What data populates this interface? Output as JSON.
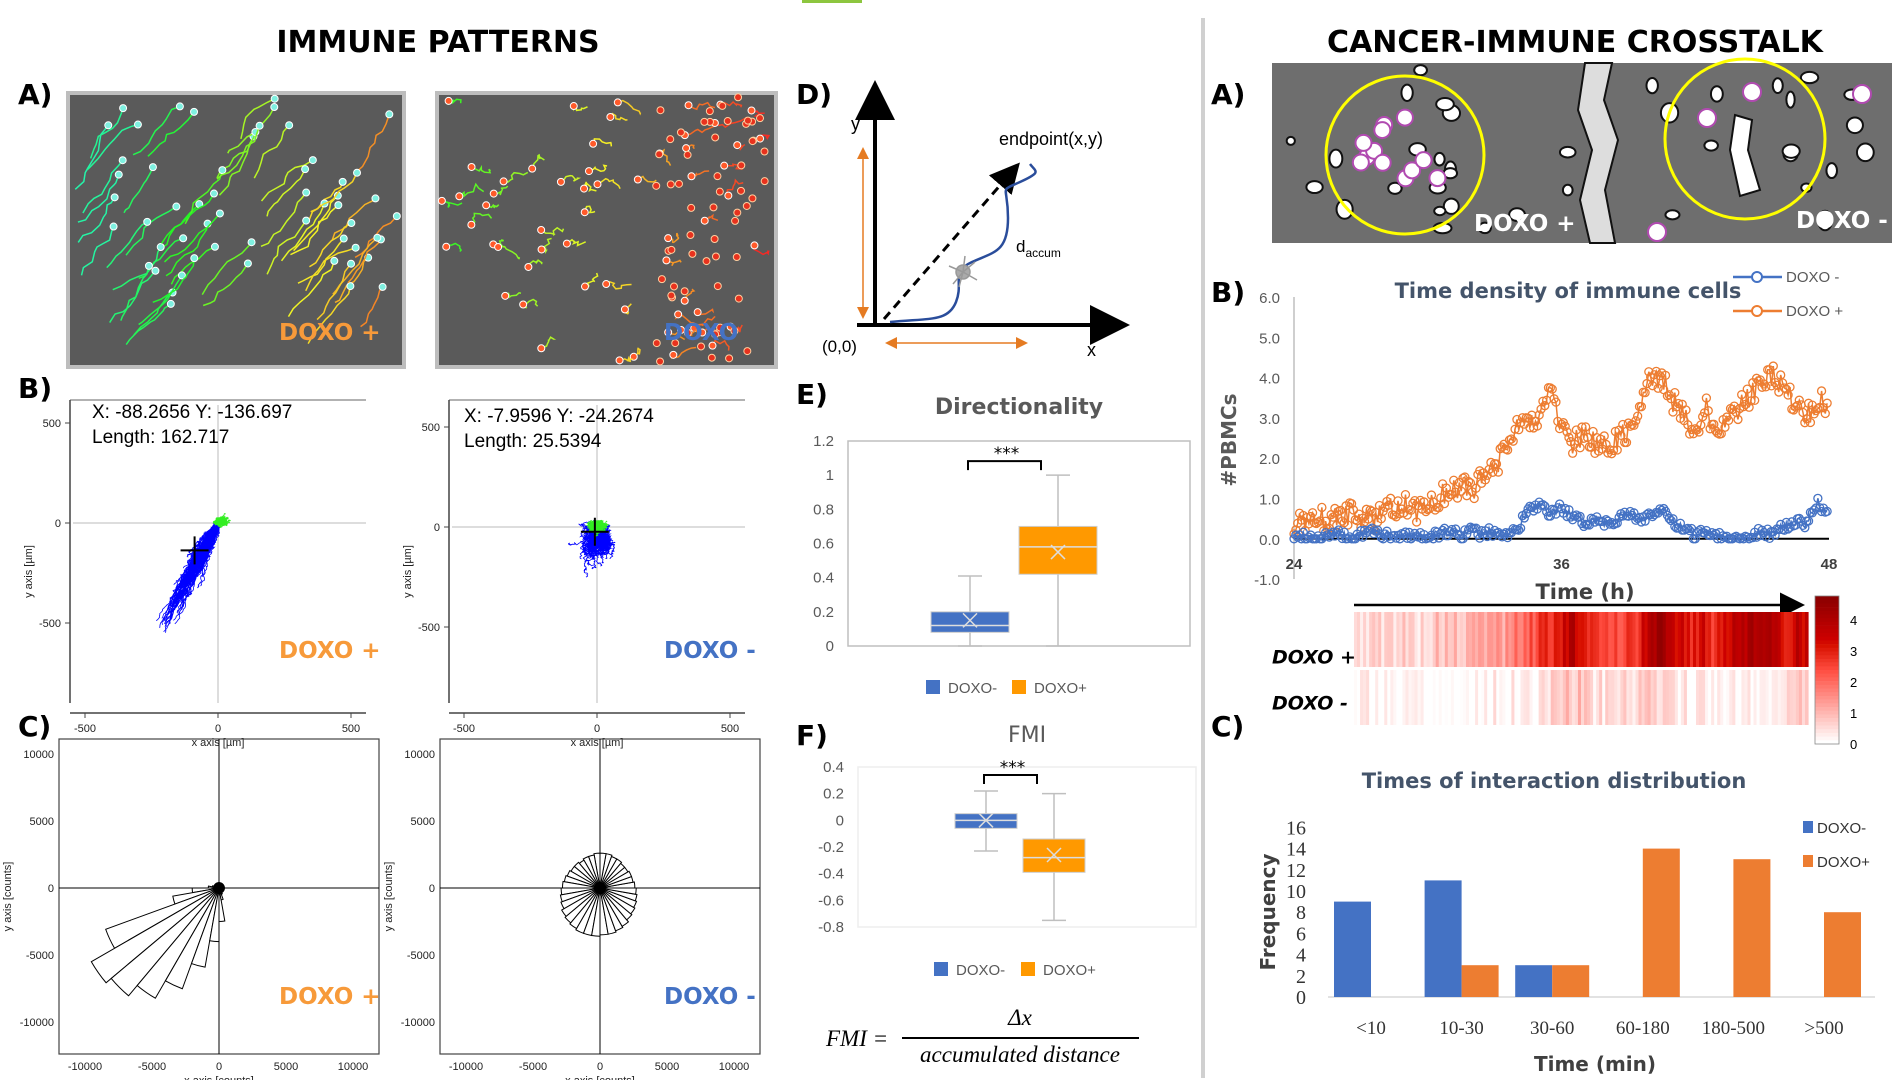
{
  "titles": {
    "left": "IMMUNE PATTERNS",
    "right": "CANCER-IMMUNE CROSSTALK"
  },
  "panel_labels": {
    "A": "A)",
    "B": "B)",
    "C": "C)",
    "D": "D)",
    "E": "E)",
    "F": "F)",
    "RA": "A)",
    "RB": "B)",
    "RC": "C)"
  },
  "colors": {
    "doxo_plus": "#F79A3A",
    "doxo_minus": "#4472C4",
    "box_plus": "#FF9900",
    "box_minus": "#4472C4",
    "bar_plus": "#ED7D31",
    "track_blue": "#0000FF",
    "track_green": "#33EE22"
  },
  "panel_a": {
    "left_label": "DOXO +",
    "right_label": "DOXO"
  },
  "panel_b": {
    "left": {
      "readout_xy": "X: -88.2656  Y: -136.697",
      "readout_len": "Length: 162.717",
      "label": "DOXO +"
    },
    "right": {
      "readout_xy": "X: -7.9596  Y: -24.2674",
      "readout_len": "Length: 25.5394",
      "label": "DOXO -"
    },
    "xlabel": "x axis [µm]",
    "ylabel": "y axis [µm]",
    "xticks": [
      -500,
      0,
      500
    ],
    "yticks": [
      500,
      0,
      -500
    ]
  },
  "panel_c": {
    "left_label": "DOXO +",
    "right_label": "DOXO -",
    "xlabel": "x axis [counts]",
    "ylabel": "y axis [counts]",
    "ticks": [
      -10000,
      -5000,
      0,
      5000,
      10000
    ]
  },
  "diagram_d": {
    "y": "y",
    "x": "x",
    "origin": "(0,0)",
    "endpoint": "endpoint(x,y)",
    "daccum": "d",
    "daccum_sub": "accum"
  },
  "formula": {
    "lhs": "FMI =",
    "numerator": "Δx",
    "denominator": "accumulated distance"
  },
  "right_a": {
    "left_label": "DOXO +",
    "right_label": "DOXO -"
  },
  "chart_data": [
    {
      "id": "rose",
      "type": "rose",
      "bin_start_deg": [
        0,
        10,
        20,
        30,
        40,
        50,
        60,
        70,
        80,
        90,
        100,
        110,
        120,
        130,
        140,
        150,
        160,
        170,
        180,
        190,
        200,
        210,
        220,
        230,
        240,
        250,
        260,
        270,
        280,
        290,
        300,
        310,
        320,
        330,
        340,
        350
      ],
      "series": [
        {
          "name": "DOXO +",
          "values": [
            400,
            400,
            400,
            400,
            400,
            400,
            400,
            400,
            400,
            400,
            400,
            400,
            400,
            400,
            400,
            400,
            500,
            800,
            2000,
            3500,
            9000,
            11000,
            10500,
            9500,
            8000,
            6000,
            4000,
            2500,
            900,
            500,
            400,
            400,
            400,
            400,
            400,
            400
          ]
        },
        {
          "name": "DOXO -",
          "values": [
            2600,
            2500,
            2500,
            2400,
            2400,
            2500,
            2500,
            2600,
            2600,
            2600,
            2500,
            2500,
            2400,
            2500,
            2500,
            2600,
            2700,
            2800,
            2900,
            3000,
            3100,
            3300,
            3400,
            3500,
            3600,
            3600,
            3600,
            3500,
            3500,
            3400,
            3300,
            3100,
            3000,
            2900,
            2800,
            2700
          ]
        }
      ]
    },
    {
      "id": "directionality",
      "type": "box",
      "title": "Directionality",
      "ylim": [
        0,
        1.2
      ],
      "yticks": [
        0,
        0.2,
        0.4,
        0.6,
        0.8,
        1,
        1.2
      ],
      "significance": "***",
      "series": [
        {
          "name": "DOXO-",
          "min": 0,
          "q1": 0.08,
          "median": 0.12,
          "q3": 0.2,
          "max": 0.41,
          "mean": 0.15
        },
        {
          "name": "DOXO+",
          "min": 0,
          "q1": 0.42,
          "median": 0.58,
          "q3": 0.7,
          "max": 1.0,
          "mean": 0.55
        }
      ]
    },
    {
      "id": "fmi",
      "type": "box",
      "title": "FMI",
      "ylim": [
        -0.8,
        0.4
      ],
      "yticks": [
        0.4,
        0.2,
        0,
        -0.2,
        -0.4,
        -0.6,
        -0.8
      ],
      "significance": "***",
      "series": [
        {
          "name": "DOXO-",
          "min": -0.23,
          "q1": -0.06,
          "median": 0,
          "q3": 0.05,
          "max": 0.22,
          "mean": 0
        },
        {
          "name": "DOXO+",
          "min": -0.75,
          "q1": -0.39,
          "median": -0.28,
          "q3": -0.14,
          "max": 0.2,
          "mean": -0.26
        }
      ]
    },
    {
      "id": "time_density",
      "type": "line",
      "title": "Time density of immune cells",
      "xlabel": "Time (h)",
      "ylabel": "#PBMCs",
      "xlim": [
        24,
        48
      ],
      "xticks": [
        24,
        36,
        48
      ],
      "ylim": [
        -1,
        6
      ],
      "yticks": [
        "6.0",
        "5.0",
        "4.0",
        "3.0",
        "2.0",
        "1.0",
        "0.0",
        "-1.0"
      ],
      "x": [
        24,
        24.5,
        25,
        25.5,
        26,
        26.5,
        27,
        27.5,
        28,
        28.5,
        29,
        29.5,
        30,
        30.5,
        31,
        31.5,
        32,
        32.5,
        33,
        33.5,
        34,
        34.5,
        35,
        35.5,
        36,
        36.5,
        37,
        37.5,
        38,
        38.5,
        39,
        39.5,
        40,
        40.5,
        41,
        41.5,
        42,
        42.5,
        43,
        43.5,
        44,
        44.5,
        45,
        45.5,
        46,
        46.5,
        47,
        47.5,
        48
      ],
      "series": [
        {
          "name": "DOXO -",
          "values": [
            0,
            0.1,
            0,
            0.1,
            0.1,
            0,
            0.1,
            0.2,
            0.1,
            0,
            0.1,
            0.1,
            0,
            0.1,
            0.2,
            0.1,
            0.2,
            0.1,
            0.2,
            0.1,
            0.2,
            0.7,
            0.8,
            0.6,
            0.8,
            0.5,
            0.4,
            0.5,
            0.4,
            0.5,
            0.6,
            0.5,
            0.6,
            0.7,
            0.4,
            0.2,
            0.1,
            0.2,
            0.1,
            0,
            0,
            0.1,
            0.2,
            0.1,
            0.3,
            0.4,
            0.4,
            0.9,
            0.5
          ]
        },
        {
          "name": "DOXO +",
          "values": [
            0.3,
            0.5,
            0.6,
            0.4,
            0.6,
            0.6,
            0.5,
            0.5,
            0.6,
            0.8,
            0.8,
            0.7,
            0.8,
            1.0,
            1.2,
            1.3,
            1.2,
            1.7,
            1.8,
            2.2,
            2.8,
            2.7,
            3.0,
            3.8,
            2.8,
            2.4,
            2.6,
            2.4,
            2.3,
            2.5,
            2.6,
            3.3,
            4.1,
            4.0,
            3.4,
            3.0,
            2.8,
            3.2,
            2.6,
            3.0,
            3.3,
            3.5,
            4.0,
            4.1,
            3.7,
            3.3,
            3.0,
            3.5,
            3.3
          ]
        }
      ]
    },
    {
      "id": "heatmap",
      "type": "heatmap",
      "rows": [
        "DOXO +",
        "DOXO -"
      ],
      "colorbar_ticks": [
        4,
        3,
        2,
        1,
        0
      ],
      "color_range": [
        0,
        4.5
      ],
      "note_source": "time_density"
    },
    {
      "id": "interaction_times",
      "type": "bar",
      "title": "Times of interaction distribution",
      "xlabel": "Time (min)",
      "ylabel": "Frequency",
      "categories": [
        "<10",
        "10-30",
        "30-60",
        "60-180",
        "180-500",
        ">500"
      ],
      "ylim": [
        0,
        16
      ],
      "yticks": [
        0,
        2,
        4,
        6,
        8,
        10,
        12,
        14,
        16
      ],
      "series": [
        {
          "name": "DOXO-",
          "values": [
            9,
            11,
            3,
            0,
            0,
            0
          ]
        },
        {
          "name": "DOXO+",
          "values": [
            0,
            3,
            3,
            14,
            13,
            8
          ]
        }
      ]
    }
  ]
}
